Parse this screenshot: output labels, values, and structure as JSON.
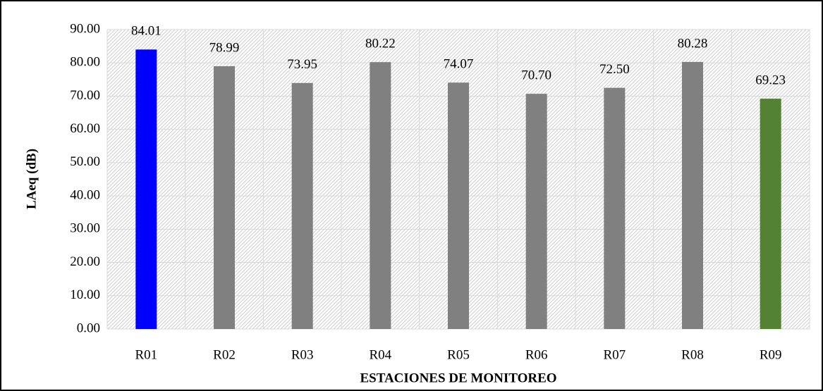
{
  "chart_data": {
    "type": "bar",
    "y_label": "LAeq (dB)",
    "x_label": "ESTACIONES DE MONITOREO",
    "categories": [
      "R01",
      "R02",
      "R03",
      "R04",
      "R05",
      "R06",
      "R07",
      "R08",
      "R09"
    ],
    "values": [
      84.01,
      78.99,
      73.95,
      80.22,
      74.07,
      70.7,
      72.5,
      80.28,
      69.23
    ],
    "value_labels": [
      "84.01",
      "78.99",
      "73.95",
      "80.22",
      "74.07",
      "70.70",
      "72.50",
      "80.28",
      "69.23"
    ],
    "colors": [
      "#0000ff",
      "#808080",
      "#808080",
      "#808080",
      "#808080",
      "#808080",
      "#808080",
      "#808080",
      "#548235"
    ],
    "ylim": [
      0,
      90
    ],
    "yticks": [
      {
        "value": 0,
        "label": "0.00"
      },
      {
        "value": 10,
        "label": "10.00"
      },
      {
        "value": 20,
        "label": "20.00"
      },
      {
        "value": 30,
        "label": "30.00"
      },
      {
        "value": 40,
        "label": "40.00"
      },
      {
        "value": 50,
        "label": "50.00"
      },
      {
        "value": 60,
        "label": "60.00"
      },
      {
        "value": 70,
        "label": "70.00"
      },
      {
        "value": 80,
        "label": "80.00"
      },
      {
        "value": 90,
        "label": "90.00"
      }
    ],
    "grid": true
  }
}
